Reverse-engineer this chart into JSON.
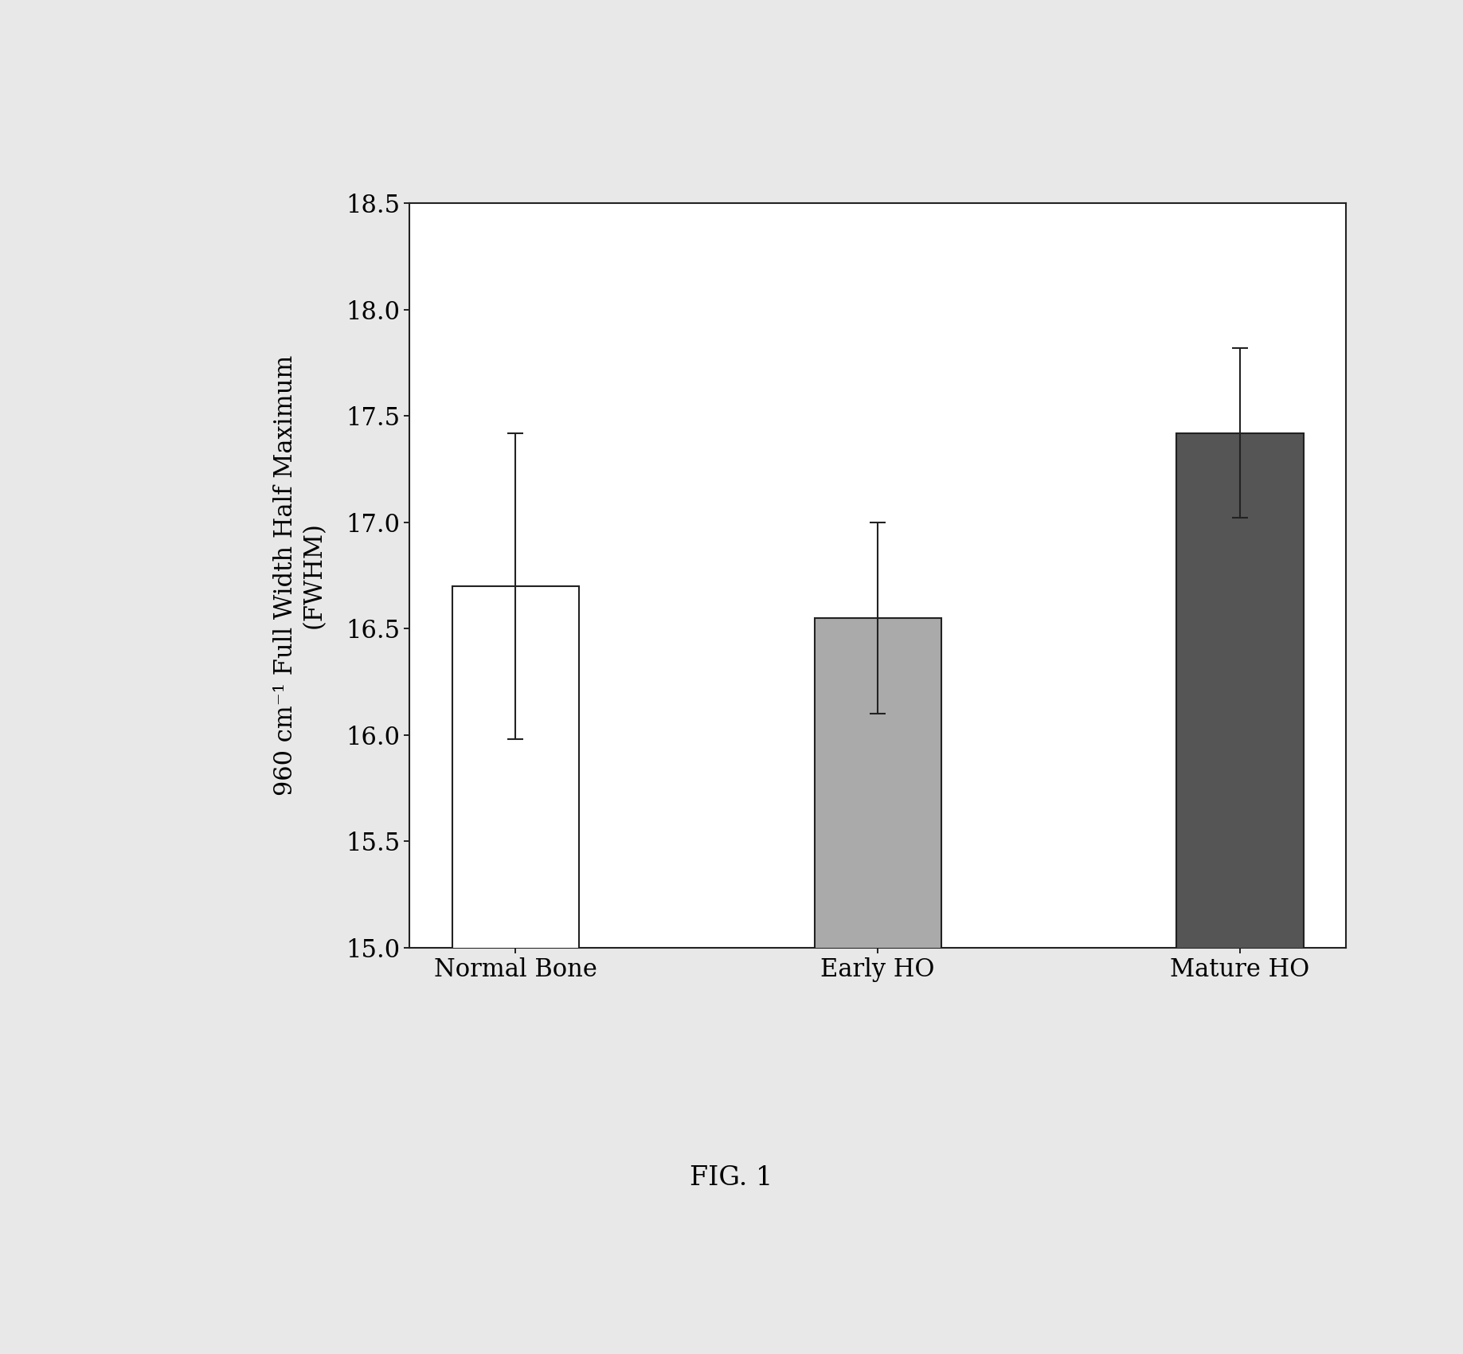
{
  "categories": [
    "Normal Bone",
    "Early HO",
    "Mature HO"
  ],
  "values": [
    16.7,
    16.55,
    17.42
  ],
  "errors": [
    0.72,
    0.45,
    0.4
  ],
  "bar_colors": [
    "#ffffff",
    "#aaaaaa",
    "#555555"
  ],
  "bar_edgecolors": [
    "#222222",
    "#222222",
    "#222222"
  ],
  "bar_width": 0.35,
  "ylim": [
    15.0,
    18.5
  ],
  "yticks": [
    15.0,
    15.5,
    16.0,
    16.5,
    17.0,
    17.5,
    18.0,
    18.5
  ],
  "ylabel": "960 cm⁻¹ Full Width Half Maximum\n(FWHM)",
  "caption": "FIG. 1",
  "background_color": "#e8e8e8",
  "plot_bg_color": "#ffffff",
  "label_fontsize": 22,
  "tick_fontsize": 22,
  "caption_fontsize": 24,
  "error_capsize": 7,
  "error_linewidth": 1.5,
  "spine_linewidth": 1.5
}
